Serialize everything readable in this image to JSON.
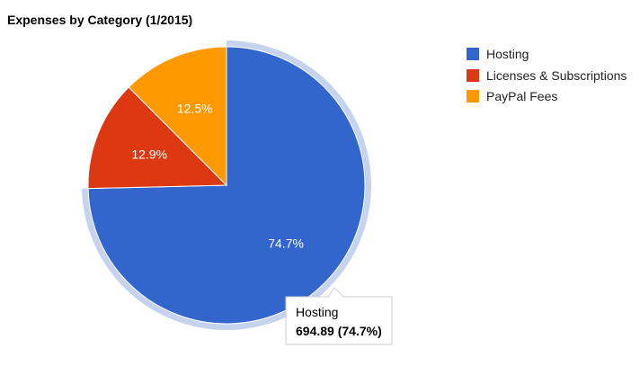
{
  "chart_data": {
    "type": "pie",
    "title": "Expenses by Category (1/2015)",
    "slices": [
      {
        "label": "Hosting",
        "percent": 74.7,
        "percent_label": "74.7%",
        "color": "#3366cc"
      },
      {
        "label": "Licenses & Subscriptions",
        "percent": 12.9,
        "percent_label": "12.9%",
        "color": "#dc3912"
      },
      {
        "label": "PayPal Fees",
        "percent": 12.5,
        "percent_label": "12.5%",
        "color": "#ff9900"
      }
    ],
    "legend_position": "right",
    "highlighted_slice": "Hosting",
    "highlight_color": "#c5d3ef",
    "tooltip": {
      "label": "Hosting",
      "value": "694.89 (74.7%)"
    }
  }
}
